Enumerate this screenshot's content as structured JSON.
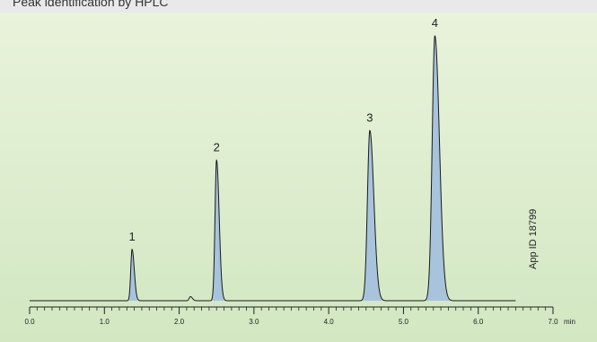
{
  "header_text": "Peak identification by HPLC",
  "side_label": "App ID 18799",
  "x_unit": "min",
  "colors": {
    "background_top": "#e9f3db",
    "background_bottom": "#d2e7c2",
    "peak_fill": "#a8c3dc",
    "trace": "#1a1a1a",
    "text": "#222222"
  },
  "chart_data": {
    "type": "line",
    "title": "",
    "xlabel": "min",
    "ylabel": "",
    "xlim": [
      0.0,
      7.0
    ],
    "ylim": [
      0,
      100
    ],
    "x_ticks": [
      0.0,
      1.0,
      2.0,
      3.0,
      4.0,
      5.0,
      6.0,
      7.0
    ],
    "x_tick_labels": [
      "0.0",
      "1.0",
      "2.0",
      "3.0",
      "4.0",
      "5.0",
      "6.0",
      "7.0"
    ],
    "minor_ticks_per_major": 10,
    "trace_range": [
      0.0,
      6.5
    ],
    "peaks": [
      {
        "label": "1",
        "rt": 1.37,
        "height": 19,
        "sigma": 0.022
      },
      {
        "label": "2",
        "rt": 2.5,
        "height": 52,
        "sigma": 0.026
      },
      {
        "label": "3",
        "rt": 4.55,
        "height": 63,
        "sigma": 0.04
      },
      {
        "label": "4",
        "rt": 5.42,
        "height": 98,
        "sigma": 0.045
      }
    ],
    "minor_peaks": [
      {
        "rt": 2.15,
        "height": 1.5,
        "sigma": 0.02
      }
    ],
    "grid": false,
    "legend": "none"
  }
}
